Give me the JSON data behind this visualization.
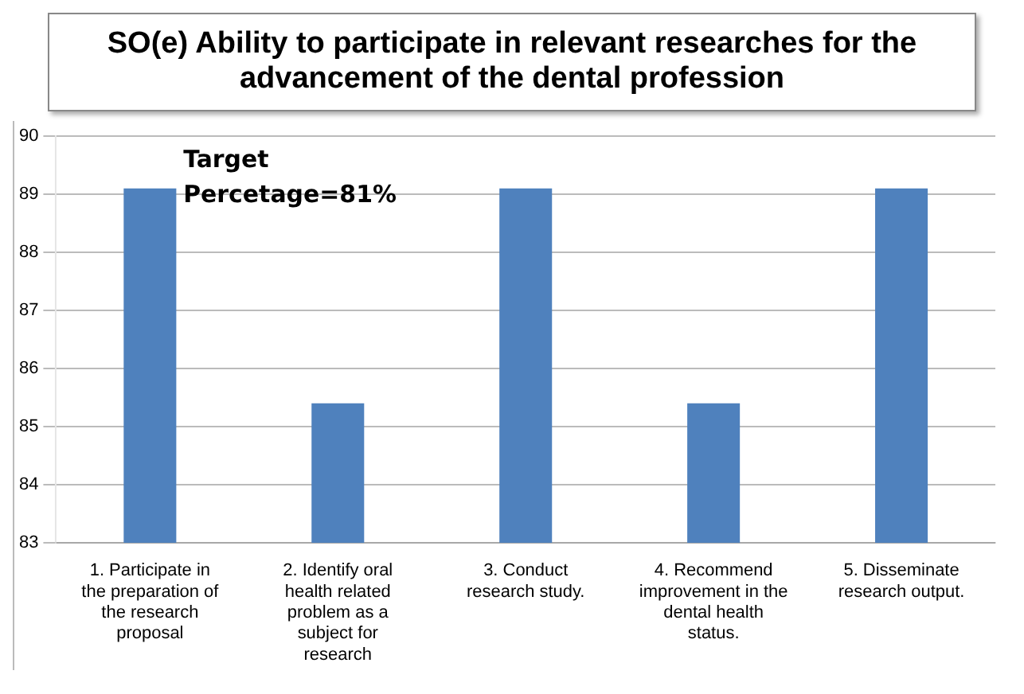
{
  "chart_data": {
    "type": "bar",
    "title": "SO(e) Ability to participate in relevant researches for the advancement of the dental profession",
    "categories": [
      "1. Participate in the preparation of the research proposal",
      "2. Identify oral health related problem as a subject for research",
      "3. Conduct research study.",
      "4. Recommend improvement in the dental health status.",
      "5. Disseminate research output."
    ],
    "values": [
      89.1,
      85.4,
      89.1,
      85.4,
      89.1
    ],
    "color": "#4f81bd",
    "ylim": [
      83,
      90
    ],
    "yticks": [
      83,
      84,
      85,
      86,
      87,
      88,
      89,
      90
    ],
    "grid": "y",
    "annotations": [
      "Target Percetage=81%"
    ]
  }
}
